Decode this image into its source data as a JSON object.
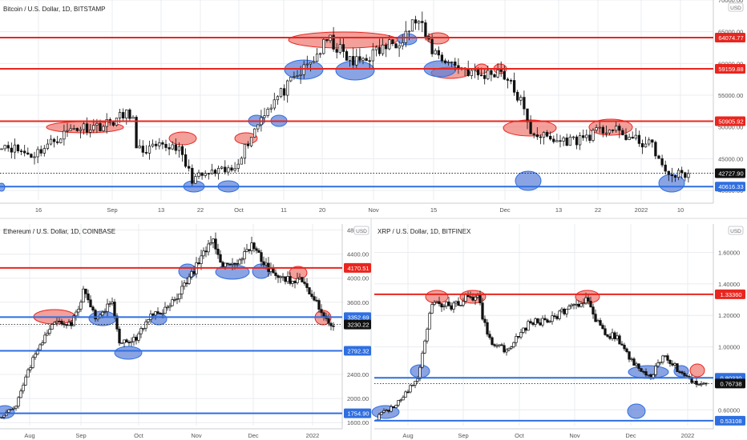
{
  "colors": {
    "support": "#2f6fe0",
    "resistance": "#e8261f",
    "candle": "#111111",
    "grid": "#e9ecf0",
    "axis_text": "#555555",
    "pill_support": "#2f6fe0",
    "pill_resistance": "#e8261f",
    "pill_last": "#111111",
    "zone_support_fill": "#5b7fd8",
    "zone_resistance_fill": "#ef7a73"
  },
  "chart_data": [
    {
      "type": "candlestick",
      "title": "Bitcoin / U.S. Dollar, 1D, BITSTAMP",
      "currency": "USD",
      "y_ticks": [
        "70000.00",
        "65000.00",
        "60000.00",
        "55000.00",
        "50000.00",
        "45000.00",
        "40000.00"
      ],
      "y_range": [
        38500,
        70000
      ],
      "x_labels": [
        "16",
        "Sep",
        "13",
        "22",
        "Oct",
        "11",
        "20",
        "Nov",
        "15",
        "Dec",
        "13",
        "22",
        "2022",
        "10"
      ],
      "resistance_levels": [
        "64074.77",
        "59159.88",
        "50905.92"
      ],
      "support_levels": [
        "40616.33"
      ],
      "last_price": "42727.90",
      "grid": true
    },
    {
      "type": "candlestick",
      "title": "Ethereum / U.S. Dollar, 1D, COINBASE",
      "currency": "USD",
      "y_ticks": [
        "4800.00",
        "4400.00",
        "4000.00",
        "3600.00",
        "3200.00",
        "2800.00",
        "2400.00",
        "2000.00",
        "1600.00"
      ],
      "y_range": [
        1550,
        4900
      ],
      "x_labels": [
        "Aug",
        "Sep",
        "Oct",
        "Nov",
        "Dec",
        "2022"
      ],
      "resistance_levels": [
        "4170.51"
      ],
      "support_levels": [
        "3352.69",
        "2792.32",
        "1754.90"
      ],
      "last_price": "3230.22",
      "grid": true
    },
    {
      "type": "candlestick",
      "title": "XRP / U.S. Dollar, 1D, BITFINEX",
      "currency": "USD",
      "y_ticks": [
        "1.60000",
        "1.40000",
        "1.20000",
        "1.00000",
        "0.80000",
        "0.60000"
      ],
      "y_range": [
        0.5,
        1.78
      ],
      "x_labels": [
        "Aug",
        "Sep",
        "Oct",
        "Nov",
        "Dec",
        "2022"
      ],
      "resistance_levels": [
        "1.33360"
      ],
      "support_levels": [
        "0.80330",
        "0.53108"
      ],
      "last_price": "0.76738",
      "grid": true
    }
  ]
}
